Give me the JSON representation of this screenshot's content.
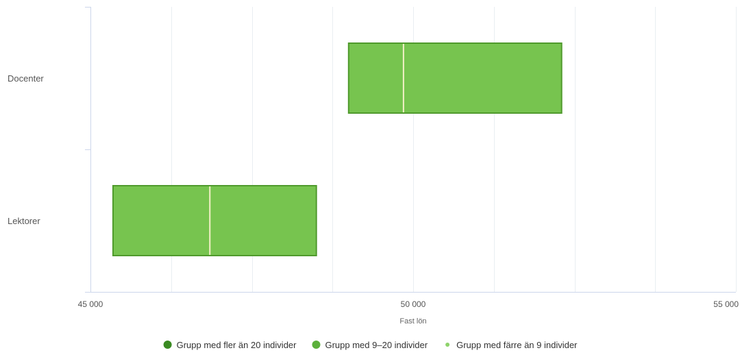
{
  "chart_data": {
    "type": "boxplot-horizontal",
    "title": "",
    "xlabel": "Fast lön",
    "ylabel": "",
    "xlim": [
      45000,
      55000
    ],
    "x_ticks": [
      45000,
      50000,
      55000
    ],
    "x_tick_labels": [
      "45 000",
      "50 000",
      "55 000"
    ],
    "minor_gridline_step": 1250,
    "grid": true,
    "categories": [
      "Docenter",
      "Lektorer"
    ],
    "boxes": [
      {
        "category": "Docenter",
        "low": 49000,
        "median": 49850,
        "high": 52300,
        "group": "Grupp med 9–20 individer"
      },
      {
        "category": "Lektorer",
        "low": 45350,
        "median": 46850,
        "high": 48500,
        "group": "Grupp med 9–20 individer"
      }
    ],
    "legend": {
      "position": "bottom-center",
      "items": [
        {
          "label": "Grupp med fler än 20 individer",
          "color": "#3a8a22",
          "marker": "large-dot"
        },
        {
          "label": "Grupp med 9–20 individer",
          "color": "#5cb03c",
          "marker": "large-dot"
        },
        {
          "label": "Grupp med färre än 9 individer",
          "color": "#8ed36b",
          "marker": "small-dot"
        }
      ]
    },
    "colors": {
      "box_fill": "#77c44f",
      "box_stroke": "#4f9a2c",
      "median_line": "#f4f0c8",
      "gridline": "#e9eef2",
      "axis_line": "#ccd6eb"
    }
  }
}
